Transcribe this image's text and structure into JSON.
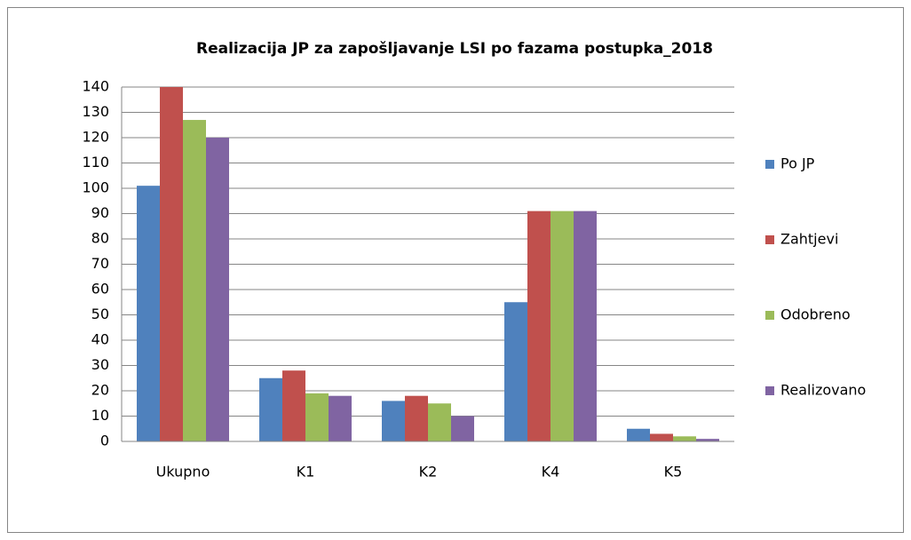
{
  "chart_data": {
    "type": "bar",
    "title": "Realizacija JP za zapošljavanje LSI po fazama postupka_2018",
    "categories": [
      "Ukupno",
      "K1",
      "K2",
      "K4",
      "K5"
    ],
    "series": [
      {
        "name": "Po JP",
        "color": "#4f81bd",
        "values": [
          101,
          25,
          16,
          55,
          5
        ]
      },
      {
        "name": "Zahtjevi",
        "color": "#c0504d",
        "values": [
          140,
          28,
          18,
          91,
          3
        ]
      },
      {
        "name": "Odobreno",
        "color": "#9bbb59",
        "values": [
          127,
          19,
          15,
          91,
          2
        ]
      },
      {
        "name": "Realizovano",
        "color": "#8064a2",
        "values": [
          120,
          18,
          10,
          91,
          1
        ]
      }
    ],
    "ylim": [
      0,
      140
    ],
    "yticks": [
      0,
      10,
      20,
      30,
      40,
      50,
      60,
      70,
      80,
      90,
      100,
      110,
      120,
      130,
      140
    ],
    "grid": true,
    "legend": "right"
  }
}
